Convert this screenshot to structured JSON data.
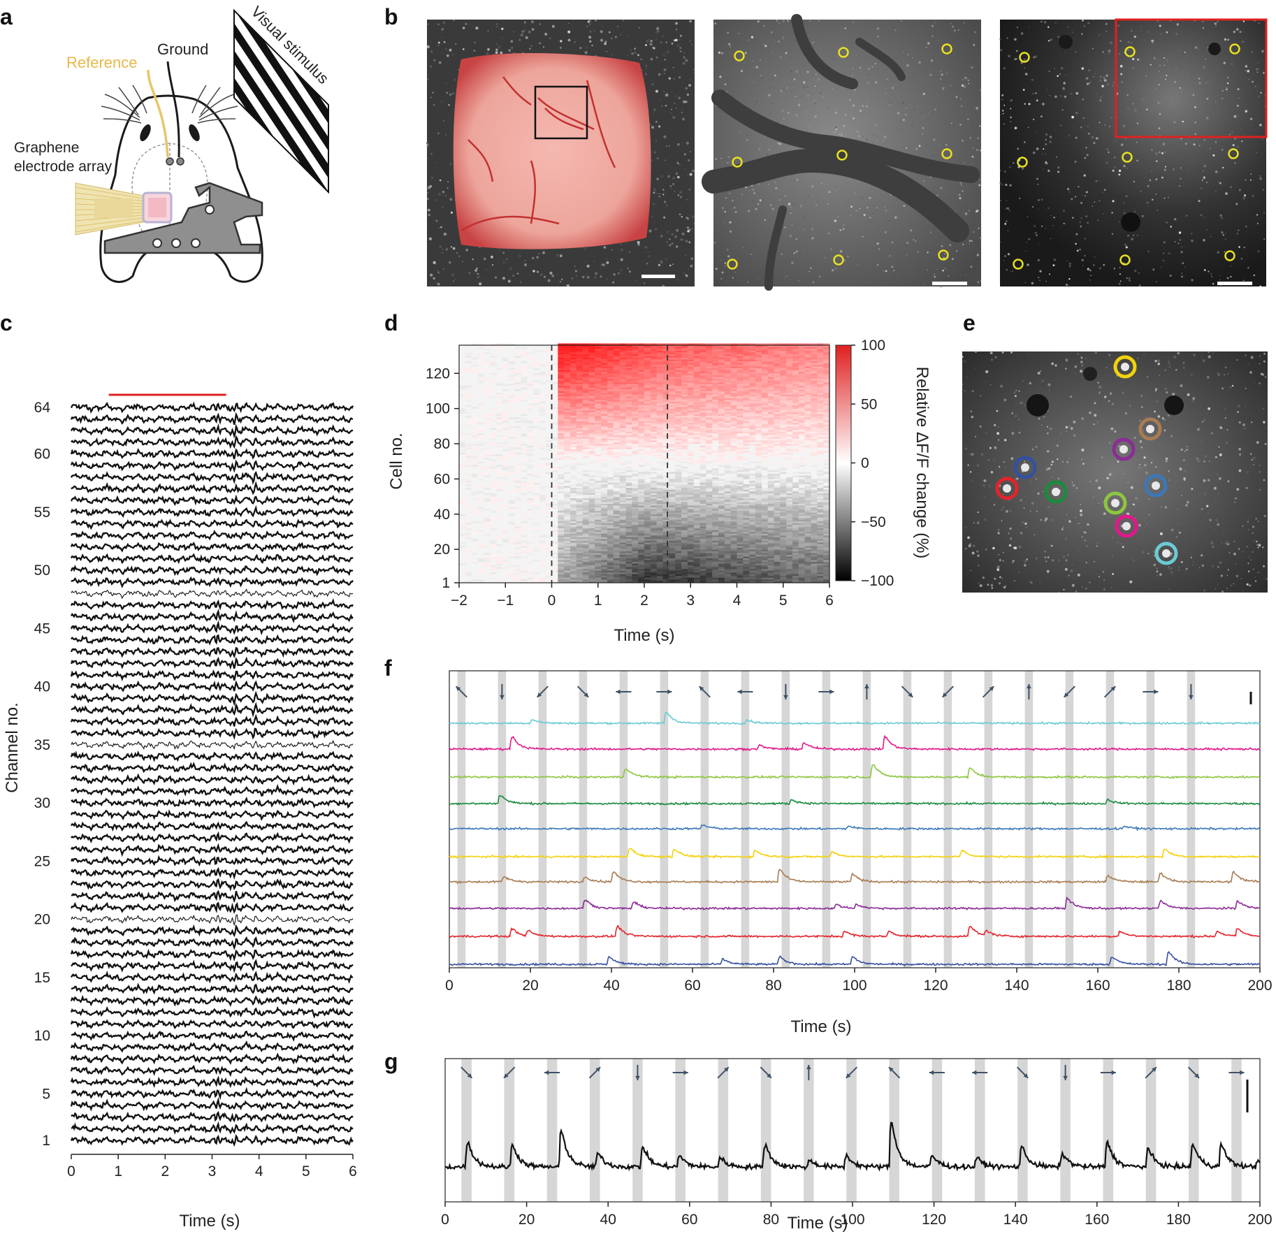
{
  "panel_labels": [
    "a",
    "b",
    "c",
    "d",
    "e",
    "f",
    "g"
  ],
  "colors": {
    "reference": "#e8c46a",
    "stimulus": "#111111",
    "heat_pos": "#e02020",
    "heat_neg": "#000000",
    "scale_red": "#e02020",
    "roi_yellow": "#e8e020",
    "arrow": "#3d5166",
    "stim_band": "#d6d6d6"
  },
  "panel_a": {
    "reference_label": "Reference",
    "ground_label": "Ground",
    "array_label_line1": "Graphene",
    "array_label_line2": "electrode array",
    "stimulus_label": "Visual stimulus"
  },
  "chart_data": [
    {
      "id": "c",
      "type": "line",
      "xlabel": "Time (s)",
      "ylabel": "Channel no.",
      "xlim": [
        0,
        6
      ],
      "xticks": [
        "0",
        "1",
        "2",
        "3",
        "4",
        "5",
        "6"
      ],
      "ylim": [
        1,
        64
      ],
      "yticks": [
        {
          "label": "64",
          "ch": 64
        },
        {
          "label": "60",
          "ch": 60
        },
        {
          "label": "55",
          "ch": 55
        },
        {
          "label": "50",
          "ch": 50
        },
        {
          "label": "45",
          "ch": 45
        },
        {
          "label": "40",
          "ch": 40
        },
        {
          "label": "35",
          "ch": 35
        },
        {
          "label": "30",
          "ch": 30
        },
        {
          "label": "25",
          "ch": 25
        },
        {
          "label": "20",
          "ch": 20
        },
        {
          "label": "15",
          "ch": 15
        },
        {
          "label": "10",
          "ch": 10
        },
        {
          "label": "5",
          "ch": 5
        },
        {
          "label": "1",
          "ch": 1
        }
      ],
      "n_channels": 64,
      "stimulus_bar": [
        0.8,
        3.3
      ],
      "thin_channels": [
        48,
        35,
        20
      ],
      "event_times": [
        1.0,
        3.1,
        3.5,
        3.9
      ]
    },
    {
      "id": "d",
      "type": "heatmap",
      "xlabel": "Time (s)",
      "ylabel": "Cell no.",
      "xlim": [
        -2,
        6
      ],
      "xticks": [
        "−2",
        "−1",
        "0",
        "1",
        "2",
        "3",
        "4",
        "5",
        "6"
      ],
      "ylim": [
        1,
        136
      ],
      "yticks": [
        {
          "label": "120",
          "v": 120
        },
        {
          "label": "100",
          "v": 100
        },
        {
          "label": "80",
          "v": 80
        },
        {
          "label": "60",
          "v": 60
        },
        {
          "label": "40",
          "v": 40
        },
        {
          "label": "20",
          "v": 20
        },
        {
          "label": "1",
          "v": 1
        }
      ],
      "stim_lines": [
        0,
        2.5
      ],
      "colorbar": {
        "label": "Relative ΔF/F change (%)",
        "range": [
          -100,
          100
        ],
        "ticks": [
          "100",
          "50",
          "0",
          "−50",
          "−100"
        ]
      }
    },
    {
      "id": "f",
      "type": "line",
      "xlabel": "Time (s)",
      "xlim": [
        0,
        200
      ],
      "xticks": [
        "0",
        "20",
        "40",
        "60",
        "80",
        "100",
        "120",
        "140",
        "160",
        "180",
        "200"
      ],
      "stim_periods": [
        [
          2,
          4
        ],
        [
          12,
          14
        ],
        [
          22,
          24
        ],
        [
          32,
          34
        ],
        [
          42,
          44
        ],
        [
          52,
          54
        ],
        [
          62,
          64
        ],
        [
          72,
          74
        ],
        [
          82,
          84
        ],
        [
          92,
          94
        ],
        [
          102,
          104
        ],
        [
          112,
          114
        ],
        [
          122,
          124
        ],
        [
          132,
          134
        ],
        [
          142,
          144
        ],
        [
          152,
          154
        ],
        [
          162,
          164
        ],
        [
          172,
          174
        ],
        [
          182,
          184
        ]
      ],
      "arrow_angles_deg": [
        135,
        270,
        225,
        315,
        180,
        0,
        135,
        180,
        270,
        0,
        90,
        315,
        225,
        45,
        90,
        225,
        45,
        0,
        270
      ],
      "series": [
        {
          "color": "#6ccbd4",
          "peaks": [
            [
              20,
              0.3
            ],
            [
              53,
              0.9
            ],
            [
              73,
              0.25
            ]
          ]
        },
        {
          "color": "#e0188a",
          "peaks": [
            [
              15,
              1.0
            ],
            [
              76,
              0.3
            ],
            [
              87,
              0.5
            ],
            [
              107,
              1.0
            ]
          ]
        },
        {
          "color": "#8dc63f",
          "peaks": [
            [
              43,
              0.7
            ],
            [
              104,
              1.0
            ],
            [
              128,
              0.7
            ]
          ]
        },
        {
          "color": "#1b8a3e",
          "peaks": [
            [
              12,
              0.7
            ],
            [
              84,
              0.3
            ],
            [
              162,
              0.3
            ]
          ]
        },
        {
          "color": "#3b78b8",
          "peaks": [
            [
              62,
              0.3
            ],
            [
              98,
              0.2
            ],
            [
              166,
              0.2
            ]
          ]
        },
        {
          "color": "#f2d20c",
          "peaks": [
            [
              44,
              0.7
            ],
            [
              55,
              0.6
            ],
            [
              75,
              0.5
            ],
            [
              94,
              0.4
            ],
            [
              126,
              0.5
            ],
            [
              176,
              0.6
            ]
          ]
        },
        {
          "color": "#a87c52",
          "peaks": [
            [
              13,
              0.4
            ],
            [
              33,
              0.4
            ],
            [
              40,
              0.8
            ],
            [
              81,
              1.0
            ],
            [
              99,
              0.6
            ],
            [
              162,
              0.5
            ],
            [
              175,
              0.7
            ],
            [
              193,
              0.8
            ]
          ]
        },
        {
          "color": "#8b2c96",
          "peaks": [
            [
              33,
              0.7
            ],
            [
              45,
              0.5
            ],
            [
              95,
              0.3
            ],
            [
              100,
              0.3
            ],
            [
              152,
              0.8
            ],
            [
              175,
              0.6
            ],
            [
              194,
              0.6
            ]
          ]
        },
        {
          "color": "#e3242b",
          "peaks": [
            [
              15,
              0.6
            ],
            [
              19,
              0.4
            ],
            [
              41,
              0.8
            ],
            [
              97,
              0.4
            ],
            [
              108,
              0.4
            ],
            [
              128,
              0.8
            ],
            [
              132,
              0.4
            ],
            [
              165,
              0.4
            ],
            [
              189,
              0.4
            ],
            [
              194,
              0.6
            ]
          ]
        },
        {
          "color": "#3550a0",
          "peaks": [
            [
              39,
              0.6
            ],
            [
              67,
              0.4
            ],
            [
              81,
              0.6
            ],
            [
              99,
              0.6
            ],
            [
              163,
              0.6
            ],
            [
              177,
              1.0
            ]
          ]
        }
      ]
    },
    {
      "id": "g",
      "type": "line",
      "xlabel": "Time (s)",
      "xlim": [
        0,
        200
      ],
      "xticks": [
        "0",
        "20",
        "40",
        "60",
        "80",
        "100",
        "120",
        "140",
        "160",
        "180",
        "200"
      ],
      "stim_periods": [
        [
          4,
          6.5
        ],
        [
          14.5,
          17
        ],
        [
          25,
          27.5
        ],
        [
          35.5,
          38
        ],
        [
          46,
          48.5
        ],
        [
          56.5,
          59
        ],
        [
          67,
          69.5
        ],
        [
          77.5,
          80
        ],
        [
          88,
          90.5
        ],
        [
          98.5,
          101
        ],
        [
          109,
          111.5
        ],
        [
          119.5,
          122
        ],
        [
          130,
          132.5
        ],
        [
          140.5,
          143
        ],
        [
          151,
          153.5
        ],
        [
          161.5,
          164
        ],
        [
          172,
          174.5
        ],
        [
          182.5,
          185
        ],
        [
          193,
          195.5
        ]
      ],
      "arrow_angles_deg": [
        315,
        225,
        180,
        45,
        270,
        0,
        45,
        315,
        90,
        225,
        135,
        180,
        180,
        315,
        270,
        0,
        45,
        315,
        0
      ],
      "series": [
        {
          "color": "#111111",
          "peaks": [
            [
              5,
              0.55
            ],
            [
              16,
              0.5
            ],
            [
              28,
              0.8
            ],
            [
              37,
              0.3
            ],
            [
              48,
              0.45
            ],
            [
              57,
              0.25
            ],
            [
              67,
              0.2
            ],
            [
              78,
              0.5
            ],
            [
              89,
              0.15
            ],
            [
              98,
              0.25
            ],
            [
              109,
              1.0
            ],
            [
              119,
              0.25
            ],
            [
              130,
              0.2
            ],
            [
              141,
              0.45
            ],
            [
              151,
              0.3
            ],
            [
              162,
              0.55
            ],
            [
              172,
              0.4
            ],
            [
              183,
              0.5
            ],
            [
              190,
              0.5
            ],
            [
              199,
              0.15
            ]
          ]
        }
      ]
    }
  ]
}
